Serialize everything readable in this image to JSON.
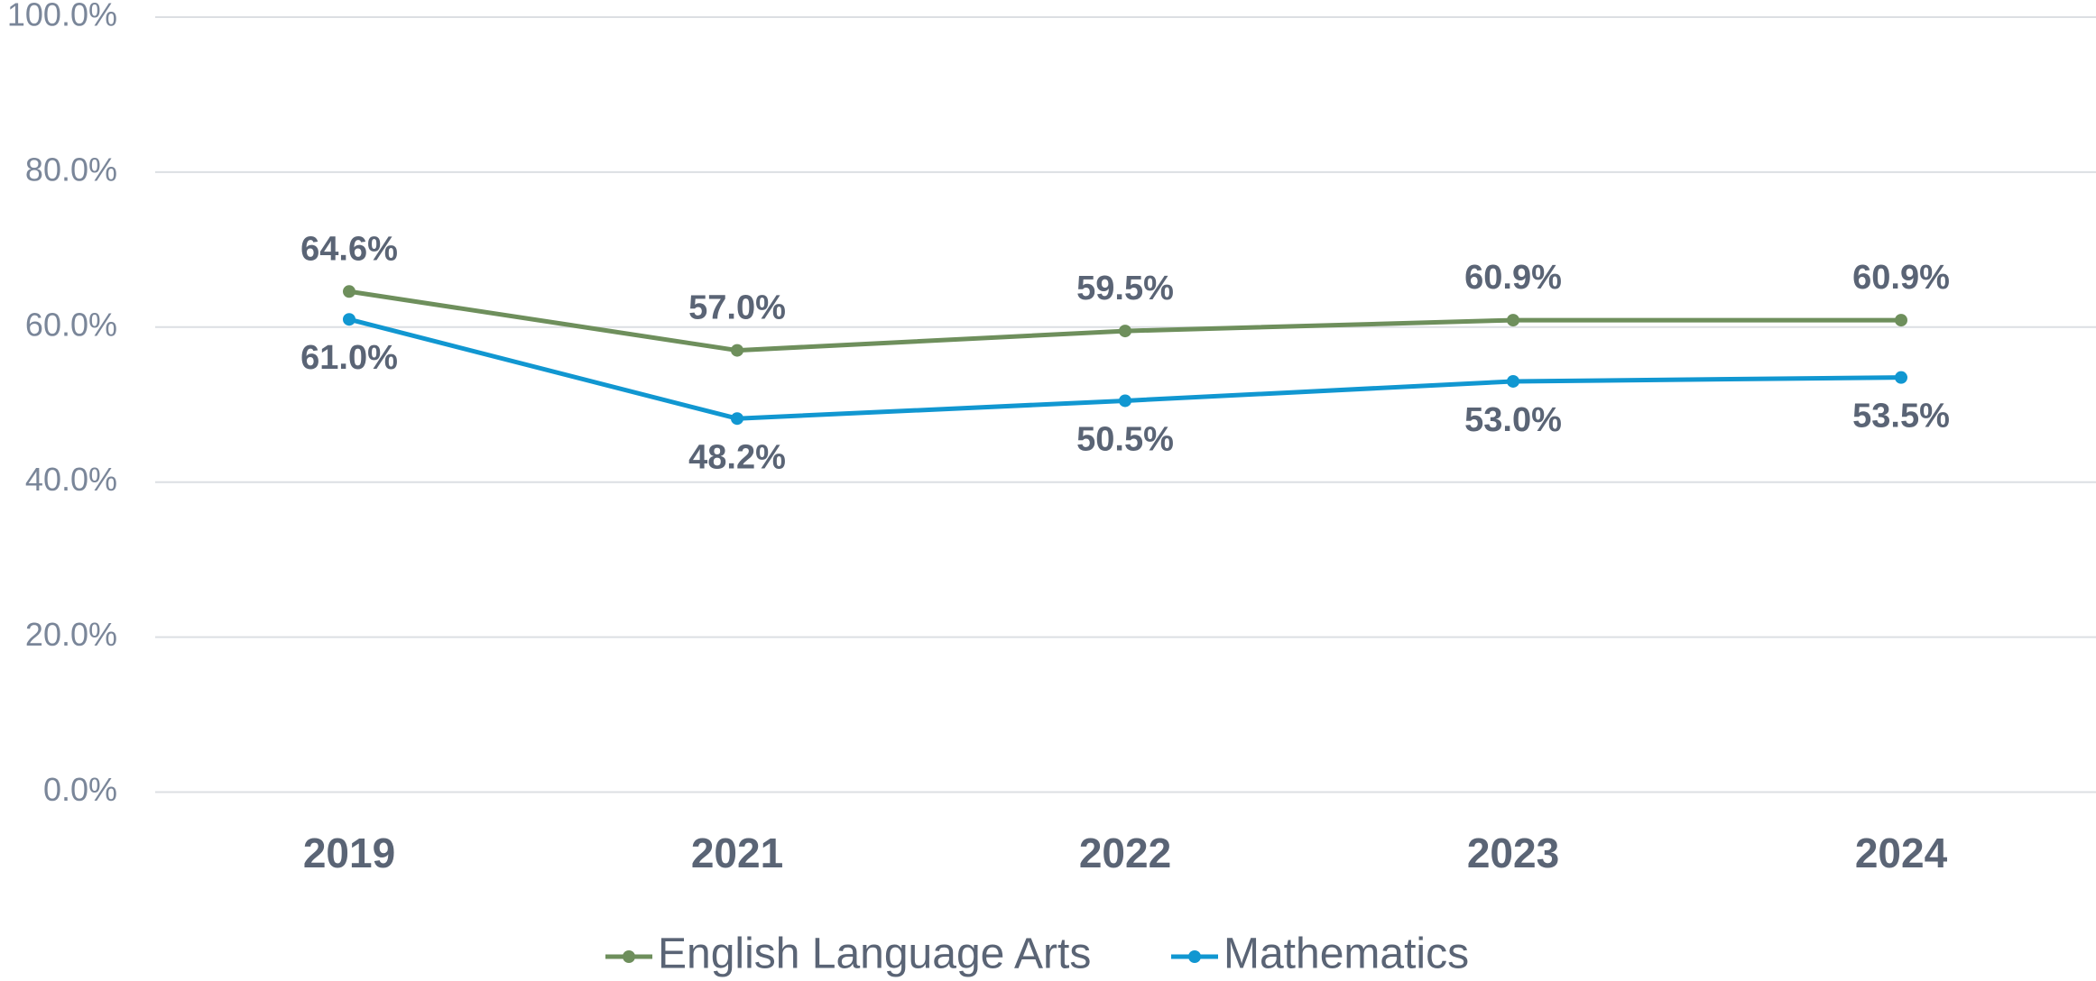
{
  "chart_data": {
    "type": "line",
    "categories": [
      "2019",
      "2021",
      "2022",
      "2023",
      "2024"
    ],
    "series": [
      {
        "name": "English Language Arts",
        "color": "#6e8f5c",
        "values": [
          64.6,
          57.0,
          59.5,
          60.9,
          60.9
        ],
        "value_labels": [
          "64.6%",
          "57.0%",
          "59.5%",
          "60.9%",
          "60.9%"
        ]
      },
      {
        "name": "Mathematics",
        "color": "#1197d1",
        "values": [
          61.0,
          48.2,
          50.5,
          53.0,
          53.5
        ],
        "value_labels": [
          "61.0%",
          "48.2%",
          "50.5%",
          "53.0%",
          "53.5%"
        ]
      }
    ],
    "ylim": [
      0,
      100
    ],
    "yticks": [
      {
        "value": 0,
        "label": "0.0%"
      },
      {
        "value": 20,
        "label": "20.0%"
      },
      {
        "value": 40,
        "label": "40.0%"
      },
      {
        "value": 60,
        "label": "60.0%"
      },
      {
        "value": 80,
        "label": "80.0%"
      },
      {
        "value": 100,
        "label": "100.0%"
      }
    ],
    "grid": true,
    "legend": "bottom"
  }
}
